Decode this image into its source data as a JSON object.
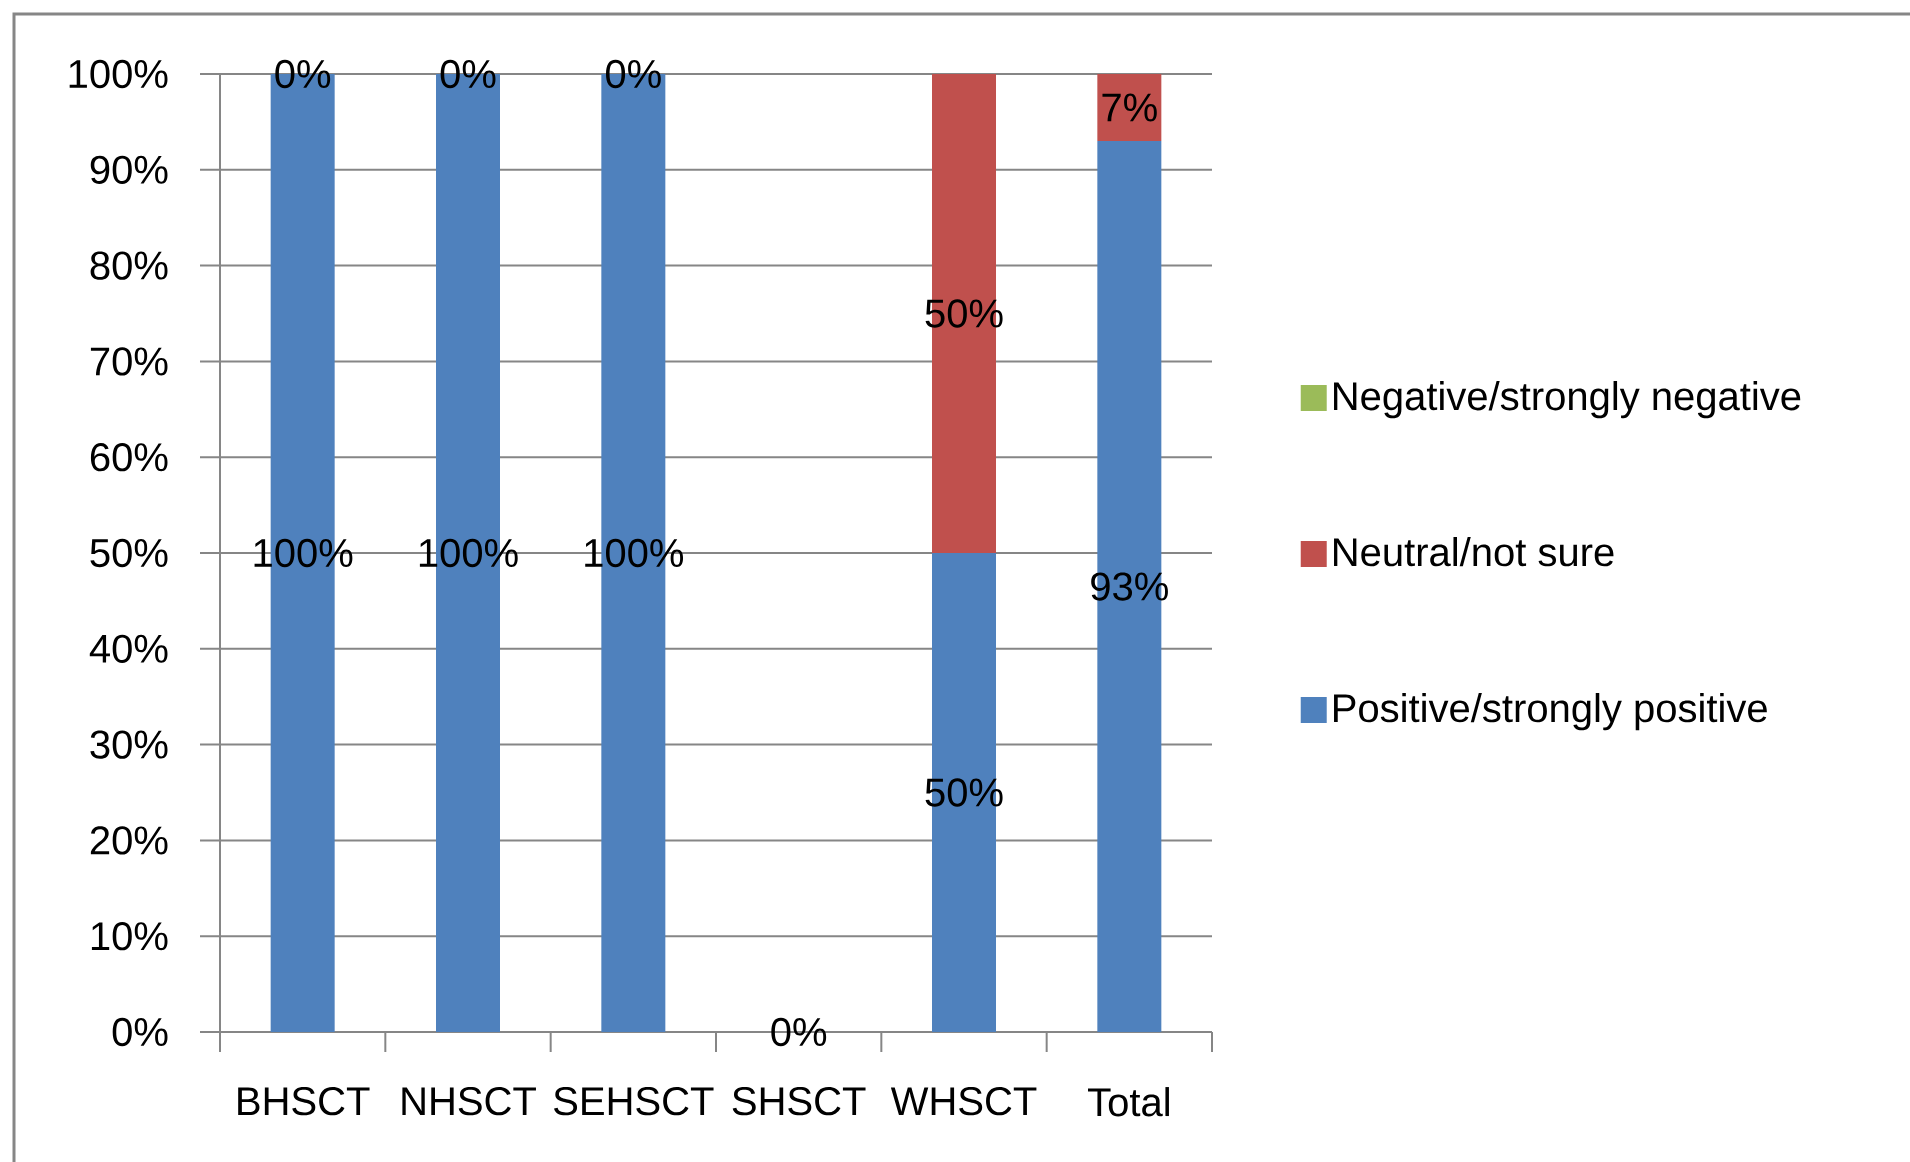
{
  "chart_data": {
    "type": "bar",
    "stacked": true,
    "categories": [
      "BHSCT",
      "NHSCT",
      "SEHSCT",
      "SHSCT",
      "WHSCT",
      "Total"
    ],
    "series": [
      {
        "name": "Positive/strongly positive",
        "color": "#4f81bd",
        "values": [
          100,
          100,
          100,
          0,
          50,
          93
        ],
        "value_labels": [
          "100%",
          "100%",
          "100%",
          "0%",
          "50%",
          "93%"
        ]
      },
      {
        "name": "Neutral/not sure",
        "color": "#c0504d",
        "values": [
          0,
          0,
          0,
          0,
          50,
          7
        ],
        "value_labels": [
          "0%",
          "0%",
          "0%",
          null,
          "50%",
          "7%"
        ]
      },
      {
        "name": "Negative/strongly negative",
        "color": "#9bbb59",
        "values": [
          0,
          0,
          0,
          0,
          0,
          0
        ]
      }
    ],
    "ylim": [
      0,
      100
    ],
    "yticks": [
      {
        "value": 0,
        "label": "0%"
      },
      {
        "value": 10,
        "label": "10%"
      },
      {
        "value": 20,
        "label": "20%"
      },
      {
        "value": 30,
        "label": "30%"
      },
      {
        "value": 40,
        "label": "40%"
      },
      {
        "value": 50,
        "label": "50%"
      },
      {
        "value": 60,
        "label": "60%"
      },
      {
        "value": 70,
        "label": "70%"
      },
      {
        "value": 80,
        "label": "80%"
      },
      {
        "value": 90,
        "label": "90%"
      },
      {
        "value": 100,
        "label": "100%"
      }
    ],
    "grid": "y",
    "legend": "right"
  }
}
